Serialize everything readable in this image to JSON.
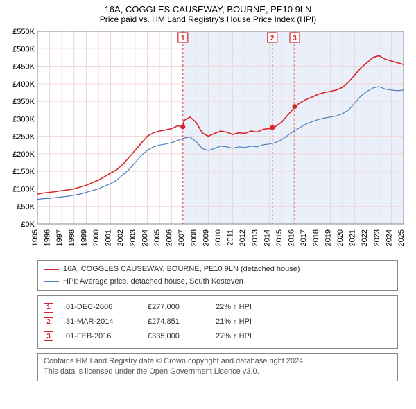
{
  "title": "16A, COGGLES CAUSEWAY, BOURNE, PE10 9LN",
  "subtitle": "Price paid vs. HM Land Registry's House Price Index (HPI)",
  "colors": {
    "series_a": "#d8232a",
    "series_b": "#4a7ebb",
    "grid": "#f0d6d6",
    "shade": "#eaf0fa",
    "axis": "#000000"
  },
  "axes": {
    "y": {
      "min": 0,
      "max": 550000,
      "step": 50000,
      "prefix": "£",
      "suffix": "K",
      "divide": 1000
    },
    "x": {
      "min": 1995,
      "max": 2025,
      "step": 1
    }
  },
  "series_a": {
    "name": "16A, COGGLES CAUSEWAY, BOURNE, PE10 9LN (detached house)",
    "points": [
      [
        1995,
        85000
      ],
      [
        1995.5,
        88000
      ],
      [
        1996,
        90000
      ],
      [
        1996.5,
        92000
      ],
      [
        1997,
        95000
      ],
      [
        1997.5,
        97000
      ],
      [
        1998,
        100000
      ],
      [
        1998.5,
        105000
      ],
      [
        1999,
        110000
      ],
      [
        1999.5,
        118000
      ],
      [
        2000,
        125000
      ],
      [
        2000.5,
        135000
      ],
      [
        2001,
        145000
      ],
      [
        2001.5,
        155000
      ],
      [
        2002,
        170000
      ],
      [
        2002.5,
        190000
      ],
      [
        2003,
        210000
      ],
      [
        2003.5,
        230000
      ],
      [
        2004,
        250000
      ],
      [
        2004.5,
        260000
      ],
      [
        2005,
        265000
      ],
      [
        2005.5,
        268000
      ],
      [
        2006,
        272000
      ],
      [
        2006.5,
        280000
      ],
      [
        2006.92,
        277000
      ],
      [
        2007,
        295000
      ],
      [
        2007.5,
        305000
      ],
      [
        2008,
        290000
      ],
      [
        2008.5,
        260000
      ],
      [
        2009,
        250000
      ],
      [
        2009.5,
        258000
      ],
      [
        2010,
        265000
      ],
      [
        2010.5,
        262000
      ],
      [
        2011,
        255000
      ],
      [
        2011.5,
        260000
      ],
      [
        2012,
        258000
      ],
      [
        2012.5,
        265000
      ],
      [
        2013,
        262000
      ],
      [
        2013.5,
        270000
      ],
      [
        2014,
        272000
      ],
      [
        2014.25,
        274851
      ],
      [
        2014.5,
        278000
      ],
      [
        2015,
        290000
      ],
      [
        2015.5,
        310000
      ],
      [
        2016,
        330000
      ],
      [
        2016.08,
        335000
      ],
      [
        2016.5,
        345000
      ],
      [
        2017,
        355000
      ],
      [
        2017.5,
        362000
      ],
      [
        2018,
        370000
      ],
      [
        2018.5,
        375000
      ],
      [
        2019,
        378000
      ],
      [
        2019.5,
        382000
      ],
      [
        2020,
        390000
      ],
      [
        2020.5,
        405000
      ],
      [
        2021,
        425000
      ],
      [
        2021.5,
        445000
      ],
      [
        2022,
        460000
      ],
      [
        2022.5,
        475000
      ],
      [
        2023,
        480000
      ],
      [
        2023.5,
        470000
      ],
      [
        2024,
        465000
      ],
      [
        2024.5,
        460000
      ],
      [
        2025,
        455000
      ]
    ]
  },
  "series_b": {
    "name": "HPI: Average price, detached house, South Kesteven",
    "points": [
      [
        1995,
        70000
      ],
      [
        1995.5,
        72000
      ],
      [
        1996,
        73000
      ],
      [
        1996.5,
        75000
      ],
      [
        1997,
        77000
      ],
      [
        1997.5,
        79000
      ],
      [
        1998,
        82000
      ],
      [
        1998.5,
        85000
      ],
      [
        1999,
        90000
      ],
      [
        1999.5,
        95000
      ],
      [
        2000,
        100000
      ],
      [
        2000.5,
        108000
      ],
      [
        2001,
        115000
      ],
      [
        2001.5,
        125000
      ],
      [
        2002,
        140000
      ],
      [
        2002.5,
        155000
      ],
      [
        2003,
        175000
      ],
      [
        2003.5,
        195000
      ],
      [
        2004,
        210000
      ],
      [
        2004.5,
        220000
      ],
      [
        2005,
        225000
      ],
      [
        2005.5,
        228000
      ],
      [
        2006,
        232000
      ],
      [
        2006.5,
        238000
      ],
      [
        2007,
        245000
      ],
      [
        2007.5,
        248000
      ],
      [
        2008,
        235000
      ],
      [
        2008.5,
        215000
      ],
      [
        2009,
        210000
      ],
      [
        2009.5,
        215000
      ],
      [
        2010,
        222000
      ],
      [
        2010.5,
        220000
      ],
      [
        2011,
        216000
      ],
      [
        2011.5,
        220000
      ],
      [
        2012,
        218000
      ],
      [
        2012.5,
        222000
      ],
      [
        2013,
        220000
      ],
      [
        2013.5,
        226000
      ],
      [
        2014,
        228000
      ],
      [
        2014.5,
        232000
      ],
      [
        2015,
        240000
      ],
      [
        2015.5,
        252000
      ],
      [
        2016,
        265000
      ],
      [
        2016.5,
        275000
      ],
      [
        2017,
        285000
      ],
      [
        2017.5,
        292000
      ],
      [
        2018,
        298000
      ],
      [
        2018.5,
        302000
      ],
      [
        2019,
        305000
      ],
      [
        2019.5,
        308000
      ],
      [
        2020,
        315000
      ],
      [
        2020.5,
        325000
      ],
      [
        2021,
        345000
      ],
      [
        2021.5,
        365000
      ],
      [
        2022,
        378000
      ],
      [
        2022.5,
        388000
      ],
      [
        2023,
        392000
      ],
      [
        2023.5,
        385000
      ],
      [
        2024,
        382000
      ],
      [
        2024.5,
        380000
      ],
      [
        2025,
        382000
      ]
    ]
  },
  "markers": [
    {
      "n": "1",
      "year": 2006.92,
      "date": "01-DEC-2006",
      "price": "£277,000",
      "pct": "22% ↑ HPI"
    },
    {
      "n": "2",
      "year": 2014.25,
      "date": "31-MAR-2014",
      "price": "£274,851",
      "pct": "21% ↑ HPI"
    },
    {
      "n": "3",
      "year": 2016.08,
      "date": "01-FEB-2016",
      "price": "£335,000",
      "pct": "27% ↑ HPI"
    }
  ],
  "shade_region": {
    "start": 2007,
    "end": 2025
  },
  "footnote": {
    "line1": "Contains HM Land Registry data © Crown copyright and database right 2024.",
    "line2": "This data is licensed under the Open Government Licence v3.0."
  }
}
